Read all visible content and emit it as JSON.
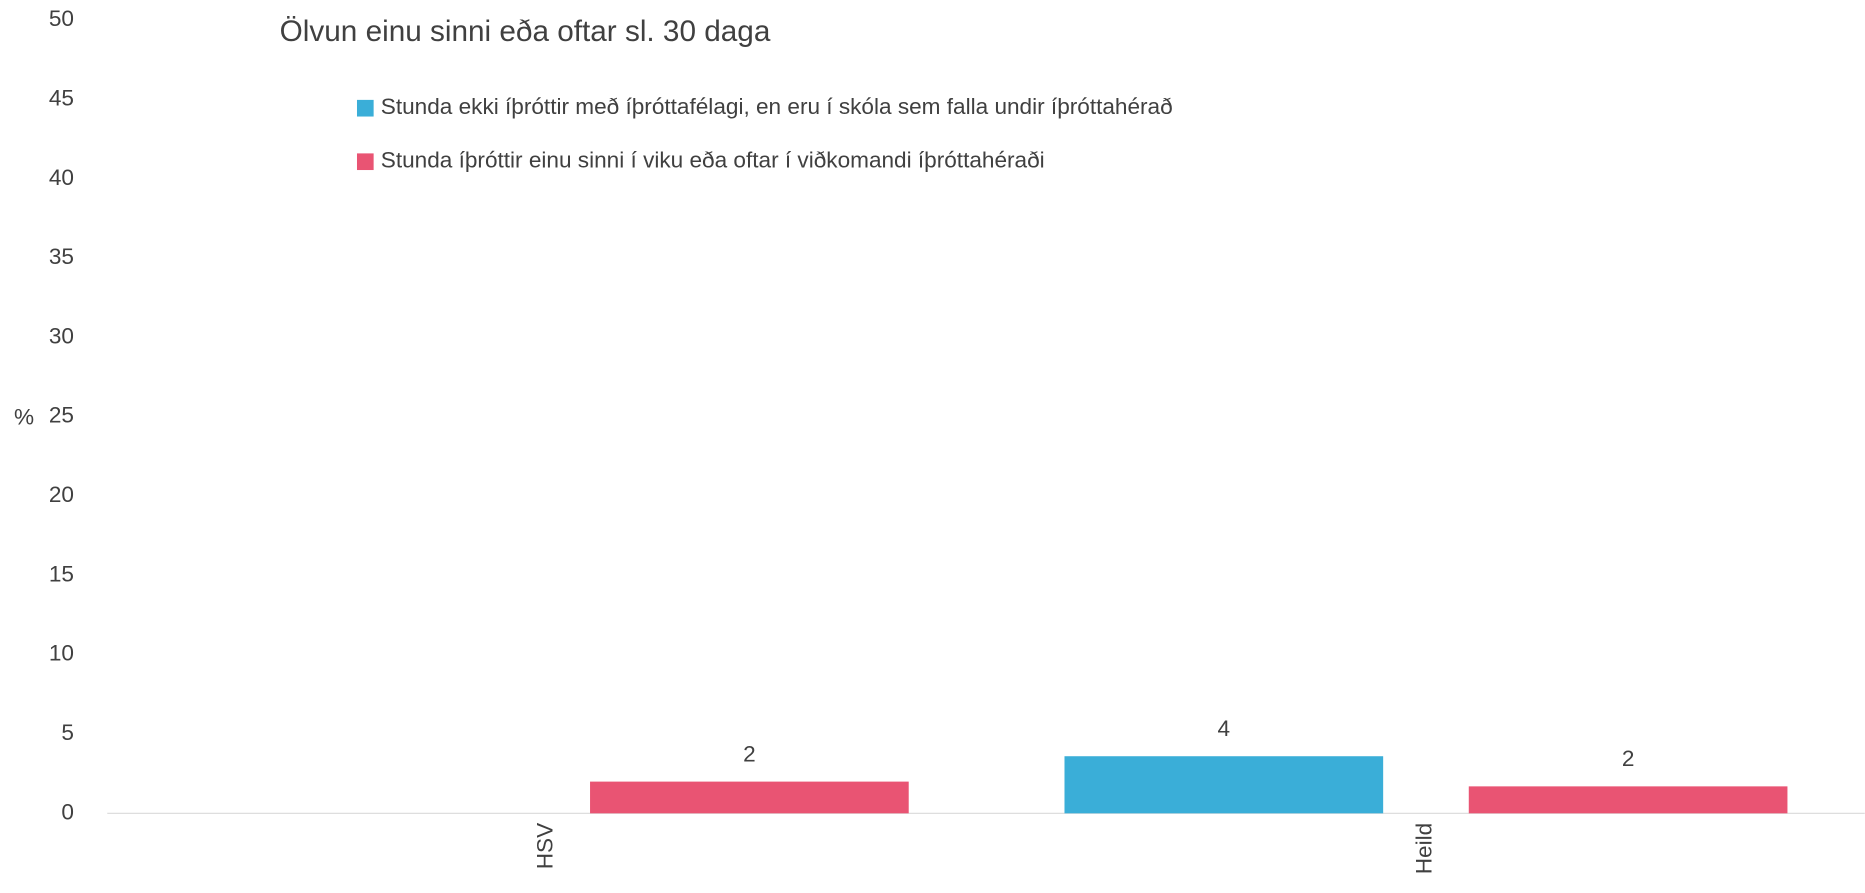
{
  "chart_data": {
    "type": "bar",
    "title": "Ölvun einu sinni eða oftar sl. 30 daga",
    "y_label": "%",
    "categories": [
      "HSV",
      "Heild"
    ],
    "series": [
      {
        "name": "Stunda ekki íþróttir með íþróttafélagi, en eru í skóla sem falla undir íþróttahérað",
        "color": "#3aaed8",
        "values": [
          null,
          3.6
        ],
        "value_labels": [
          null,
          "4"
        ]
      },
      {
        "name": "Stunda íþróttir einu sinni í viku eða oftar í viðkomandi íþróttahéraði",
        "color": "#e95473",
        "values": [
          2.0,
          1.7
        ],
        "value_labels": [
          "2",
          "2"
        ]
      }
    ],
    "ylim": [
      0,
      50
    ],
    "yticks": [
      0,
      5,
      10,
      15,
      20,
      25,
      30,
      35,
      40,
      45,
      50
    ],
    "grid": false
  }
}
